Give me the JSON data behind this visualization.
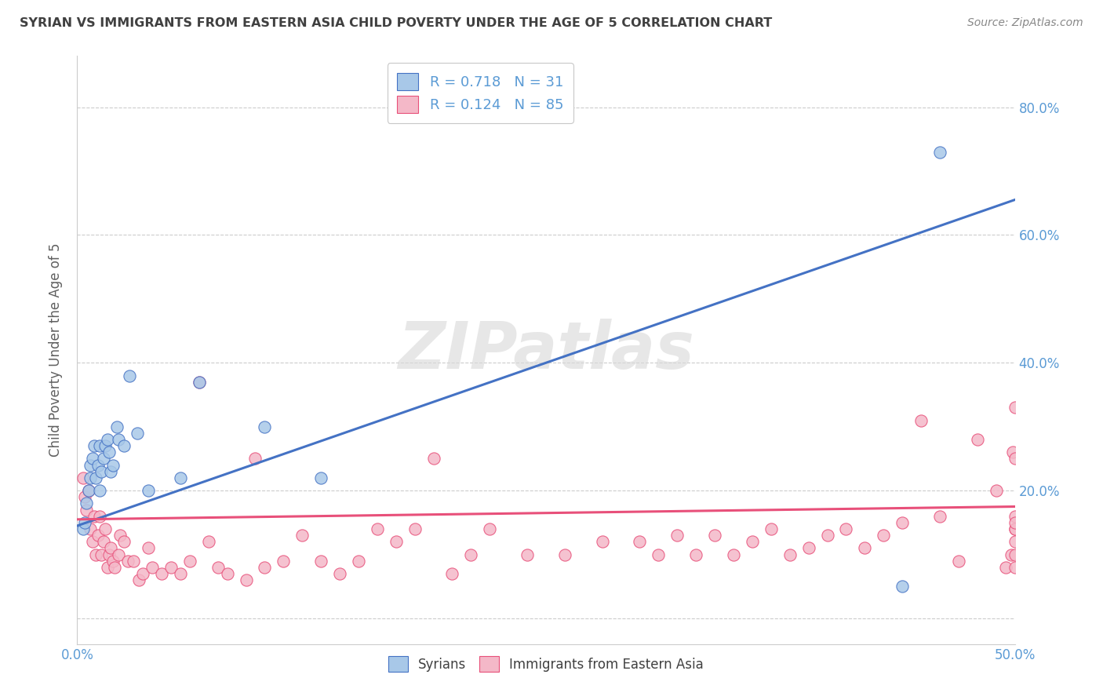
{
  "title": "SYRIAN VS IMMIGRANTS FROM EASTERN ASIA CHILD POVERTY UNDER THE AGE OF 5 CORRELATION CHART",
  "source": "Source: ZipAtlas.com",
  "ylabel": "Child Poverty Under the Age of 5",
  "legend_label1": "Syrians",
  "legend_label2": "Immigrants from Eastern Asia",
  "r1": "0.718",
  "n1": "31",
  "r2": "0.124",
  "n2": "85",
  "blue_color": "#a8c8e8",
  "pink_color": "#f4b8c8",
  "blue_line_color": "#4472c4",
  "pink_line_color": "#e8507a",
  "title_color": "#404040",
  "source_color": "#888888",
  "watermark_color": "#d8d8d8",
  "background_color": "#ffffff",
  "xmin": 0.0,
  "xmax": 0.5,
  "ymin": -0.04,
  "ymax": 0.88,
  "blue_trend_x0": 0.0,
  "blue_trend_y0": 0.145,
  "blue_trend_x1": 0.5,
  "blue_trend_y1": 0.655,
  "pink_trend_x0": 0.0,
  "pink_trend_y0": 0.155,
  "pink_trend_x1": 0.5,
  "pink_trend_y1": 0.175,
  "syrian_x": [
    0.003,
    0.004,
    0.005,
    0.006,
    0.007,
    0.007,
    0.008,
    0.009,
    0.01,
    0.011,
    0.012,
    0.012,
    0.013,
    0.014,
    0.015,
    0.016,
    0.017,
    0.018,
    0.019,
    0.021,
    0.022,
    0.025,
    0.028,
    0.032,
    0.038,
    0.055,
    0.065,
    0.1,
    0.13,
    0.44,
    0.46
  ],
  "syrian_y": [
    0.14,
    0.15,
    0.18,
    0.2,
    0.22,
    0.24,
    0.25,
    0.27,
    0.22,
    0.24,
    0.2,
    0.27,
    0.23,
    0.25,
    0.27,
    0.28,
    0.26,
    0.23,
    0.24,
    0.3,
    0.28,
    0.27,
    0.38,
    0.29,
    0.2,
    0.22,
    0.37,
    0.3,
    0.22,
    0.05,
    0.73
  ],
  "easternasia_x": [
    0.003,
    0.004,
    0.005,
    0.006,
    0.007,
    0.008,
    0.009,
    0.01,
    0.011,
    0.012,
    0.013,
    0.014,
    0.015,
    0.016,
    0.017,
    0.018,
    0.019,
    0.02,
    0.022,
    0.023,
    0.025,
    0.027,
    0.03,
    0.033,
    0.035,
    0.038,
    0.04,
    0.045,
    0.05,
    0.055,
    0.06,
    0.065,
    0.07,
    0.075,
    0.08,
    0.09,
    0.095,
    0.1,
    0.11,
    0.12,
    0.13,
    0.14,
    0.15,
    0.16,
    0.17,
    0.18,
    0.19,
    0.2,
    0.21,
    0.22,
    0.24,
    0.26,
    0.28,
    0.3,
    0.31,
    0.32,
    0.33,
    0.34,
    0.35,
    0.36,
    0.37,
    0.38,
    0.39,
    0.4,
    0.41,
    0.42,
    0.43,
    0.44,
    0.45,
    0.46,
    0.47,
    0.48,
    0.49,
    0.495,
    0.498,
    0.499,
    0.5,
    0.5,
    0.5,
    0.5,
    0.5,
    0.5,
    0.5,
    0.5,
    0.5
  ],
  "easternasia_y": [
    0.22,
    0.19,
    0.17,
    0.2,
    0.14,
    0.12,
    0.16,
    0.1,
    0.13,
    0.16,
    0.1,
    0.12,
    0.14,
    0.08,
    0.1,
    0.11,
    0.09,
    0.08,
    0.1,
    0.13,
    0.12,
    0.09,
    0.09,
    0.06,
    0.07,
    0.11,
    0.08,
    0.07,
    0.08,
    0.07,
    0.09,
    0.37,
    0.12,
    0.08,
    0.07,
    0.06,
    0.25,
    0.08,
    0.09,
    0.13,
    0.09,
    0.07,
    0.09,
    0.14,
    0.12,
    0.14,
    0.25,
    0.07,
    0.1,
    0.14,
    0.1,
    0.1,
    0.12,
    0.12,
    0.1,
    0.13,
    0.1,
    0.13,
    0.1,
    0.12,
    0.14,
    0.1,
    0.11,
    0.13,
    0.14,
    0.11,
    0.13,
    0.15,
    0.31,
    0.16,
    0.09,
    0.28,
    0.2,
    0.08,
    0.1,
    0.26,
    0.16,
    0.14,
    0.08,
    0.1,
    0.14,
    0.15,
    0.12,
    0.33,
    0.25
  ]
}
